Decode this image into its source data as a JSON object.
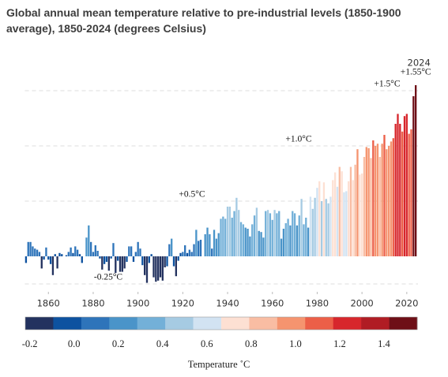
{
  "chart_data": {
    "type": "bar",
    "title": "Global annual mean temperature relative to pre-industrial levels (1850-1900 average), 1850-2024 (degrees Celsius)",
    "x": [
      1850,
      1851,
      1852,
      1853,
      1854,
      1855,
      1856,
      1857,
      1858,
      1859,
      1860,
      1861,
      1862,
      1863,
      1864,
      1865,
      1866,
      1867,
      1868,
      1869,
      1870,
      1871,
      1872,
      1873,
      1874,
      1875,
      1876,
      1877,
      1878,
      1879,
      1880,
      1881,
      1882,
      1883,
      1884,
      1885,
      1886,
      1887,
      1888,
      1889,
      1890,
      1891,
      1892,
      1893,
      1894,
      1895,
      1896,
      1897,
      1898,
      1899,
      1900,
      1901,
      1902,
      1903,
      1904,
      1905,
      1906,
      1907,
      1908,
      1909,
      1910,
      1911,
      1912,
      1913,
      1914,
      1915,
      1916,
      1917,
      1918,
      1919,
      1920,
      1921,
      1922,
      1923,
      1924,
      1925,
      1926,
      1927,
      1928,
      1929,
      1930,
      1931,
      1932,
      1933,
      1934,
      1935,
      1936,
      1937,
      1938,
      1939,
      1940,
      1941,
      1942,
      1943,
      1944,
      1945,
      1946,
      1947,
      1948,
      1949,
      1950,
      1951,
      1952,
      1953,
      1954,
      1955,
      1956,
      1957,
      1958,
      1959,
      1960,
      1961,
      1962,
      1963,
      1964,
      1965,
      1966,
      1967,
      1968,
      1969,
      1970,
      1971,
      1972,
      1973,
      1974,
      1975,
      1976,
      1977,
      1978,
      1979,
      1980,
      1981,
      1982,
      1983,
      1984,
      1985,
      1986,
      1987,
      1988,
      1989,
      1990,
      1991,
      1992,
      1993,
      1994,
      1995,
      1996,
      1997,
      1998,
      1999,
      2000,
      2001,
      2002,
      2003,
      2004,
      2005,
      2006,
      2007,
      2008,
      2009,
      2010,
      2011,
      2012,
      2013,
      2014,
      2015,
      2016,
      2017,
      2018,
      2019,
      2020,
      2021,
      2022,
      2023,
      2024
    ],
    "values": [
      -0.06,
      0.13,
      0.13,
      0.09,
      0.07,
      0.06,
      0.04,
      -0.11,
      -0.03,
      0.08,
      -0.03,
      -0.07,
      -0.17,
      0.02,
      -0.11,
      0.03,
      0.02,
      0,
      0.01,
      0.04,
      0.08,
      0.03,
      0.09,
      0.06,
      0.02,
      -0.06,
      0,
      0.17,
      0.28,
      0.13,
      0.04,
      0.1,
      0.05,
      -0.02,
      -0.12,
      -0.07,
      -0.05,
      -0.13,
      -0.02,
      0.12,
      -0.15,
      -0.04,
      -0.14,
      -0.14,
      -0.11,
      -0.05,
      0.09,
      0.09,
      -0.05,
      0.04,
      0.13,
      0.07,
      -0.08,
      -0.17,
      -0.24,
      -0.06,
      0.02,
      -0.19,
      -0.23,
      -0.22,
      -0.19,
      -0.22,
      -0.1,
      -0.09,
      0.11,
      0.16,
      -0.09,
      -0.18,
      -0.04,
      0.03,
      0.04,
      0.1,
      0.03,
      0.06,
      0.04,
      0.11,
      0.24,
      0.14,
      0.15,
      0,
      0.2,
      0.26,
      0.2,
      0.07,
      0.24,
      0.16,
      0.21,
      0.34,
      0.36,
      0.34,
      0.45,
      0.45,
      0.35,
      0.41,
      0.53,
      0.42,
      0.31,
      0.29,
      0.26,
      0.25,
      0.18,
      0.29,
      0.37,
      0.44,
      0.23,
      0.22,
      0.17,
      0.41,
      0.42,
      0.39,
      0.33,
      0.42,
      0.39,
      0.41,
      0.16,
      0.25,
      0.3,
      0.34,
      0.28,
      0.41,
      0.39,
      0.28,
      0.37,
      0.52,
      0.29,
      0.35,
      0.26,
      0.54,
      0.43,
      0.53,
      0.62,
      0.68,
      0.5,
      0.67,
      0.52,
      0.48,
      0.54,
      0.69,
      0.76,
      0.63,
      0.81,
      0.77,
      0.58,
      0.59,
      0.68,
      0.81,
      0.69,
      0.83,
      0.97,
      0.74,
      0.75,
      0.9,
      0.99,
      0.98,
      0.89,
      1.05,
      1.0,
      1.02,
      0.9,
      1.02,
      1.1,
      0.97,
      1.0,
      1.04,
      1.07,
      1.2,
      1.29,
      1.2,
      1.13,
      1.27,
      1.29,
      1.11,
      1.15,
      1.45,
      1.55
    ],
    "xlim": [
      1849.5,
      2025
    ],
    "xticks": [
      1860,
      1880,
      1900,
      1920,
      1940,
      1960,
      1980,
      2000,
      2020
    ],
    "ylim": [
      -0.3,
      1.6
    ],
    "yticks": [
      {
        "value": -0.25,
        "label": "-0.25°C"
      },
      {
        "value": 0.5,
        "label": "+0.5°C"
      },
      {
        "value": 1.0,
        "label": "+1.0°C"
      },
      {
        "value": 1.5,
        "label": "+1.5°C"
      }
    ],
    "grid": true,
    "annotation": [
      "2024",
      "+1.55°C"
    ],
    "colorbar": {
      "label": "Temperature ˚C",
      "range": [
        -0.22,
        1.55
      ],
      "colors": [
        "#23325f",
        "#0d52a0",
        "#2e74ba",
        "#4a94c9",
        "#73b0d8",
        "#a6cbe3",
        "#d2e3f2",
        "#fde0d3",
        "#f9bda3",
        "#f5946f",
        "#ec5f48",
        "#d7262c",
        "#b01c24",
        "#6e0f17"
      ],
      "ticks": [
        -0.2,
        {
          "value": 0,
          "label": "0.0"
        },
        0.2,
        0.4,
        0.6,
        0.8,
        {
          "value": 1.0,
          "label": "1.0"
        },
        1.2,
        1.4
      ]
    }
  }
}
